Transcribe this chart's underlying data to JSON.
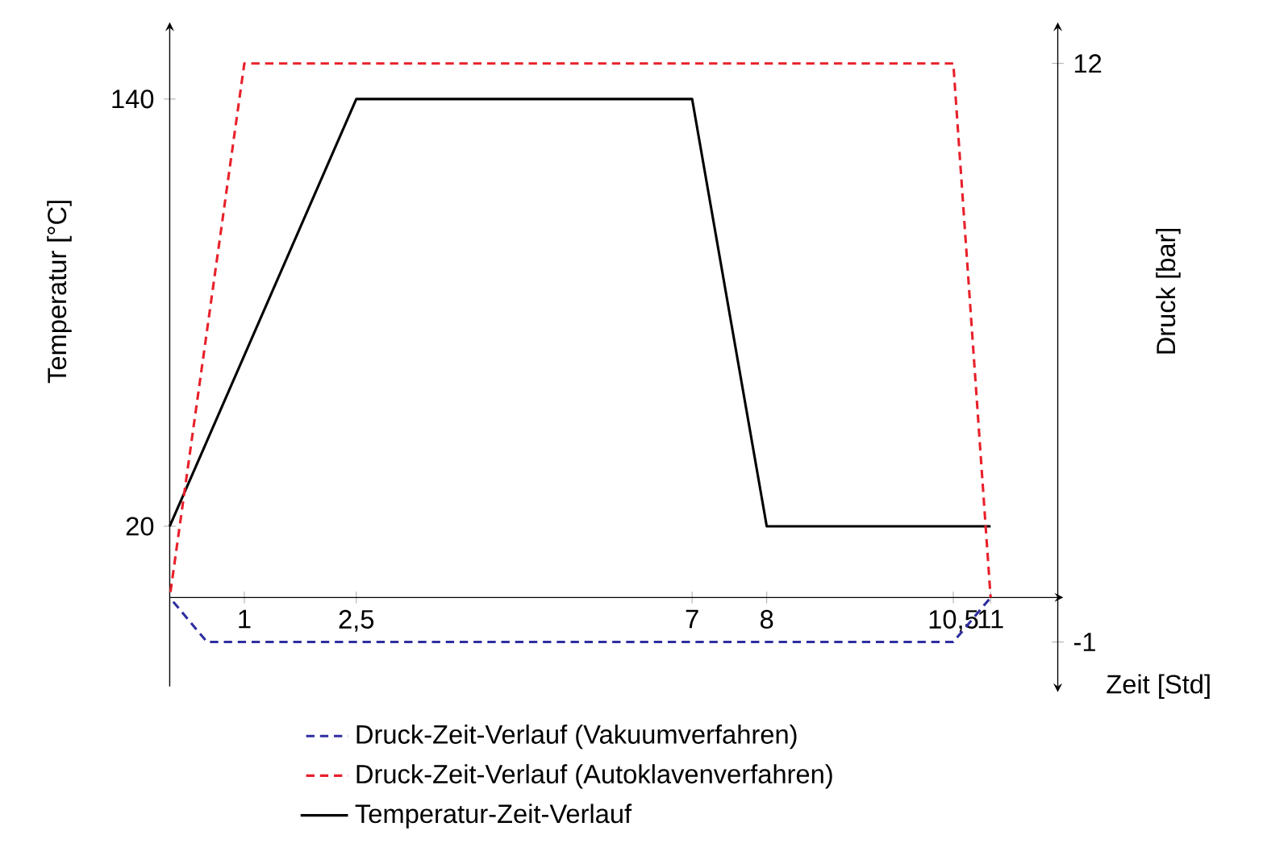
{
  "chart_data": {
    "type": "line",
    "xlabel": "Zeit [Std]",
    "ylabel": "Temperatur [°C]",
    "y2label": "Druck [bar]",
    "xlim": [
      0,
      11.9
    ],
    "xticks": [
      1,
      {
        "value": 2.5,
        "label": "2,5"
      },
      7,
      8,
      {
        "value": 10.5,
        "label": "10,5"
      },
      11
    ],
    "ylim": [
      -25,
      160
    ],
    "yticks": [
      20,
      140
    ],
    "y2lim": [
      -2,
      12.8
    ],
    "y2ticks": [
      -1,
      12
    ],
    "legend": "bottom",
    "marker": "none",
    "series": [
      {
        "name": "Druck-Zeit-Verlauf (Vakuumverfahren)",
        "color": "#2e2ea0",
        "axis": "y2",
        "line_style": "dashed",
        "x": [
          0,
          0.5,
          10.5,
          11
        ],
        "values": [
          0,
          -1,
          -1,
          0
        ]
      },
      {
        "name": "Druck-Zeit-Verlauf (Autoklavenverfahren)",
        "color": "#e8202a",
        "axis": "y2",
        "line_style": "dashed",
        "x": [
          0,
          1,
          10.5,
          11
        ],
        "values": [
          0,
          12,
          12,
          0
        ]
      },
      {
        "name": "Temperatur-Zeit-Verlauf",
        "color": "#000000",
        "axis": "y",
        "line_style": "solid",
        "x": [
          0,
          2.5,
          7,
          8,
          11
        ],
        "values": [
          20,
          140,
          140,
          20,
          20
        ]
      }
    ]
  }
}
